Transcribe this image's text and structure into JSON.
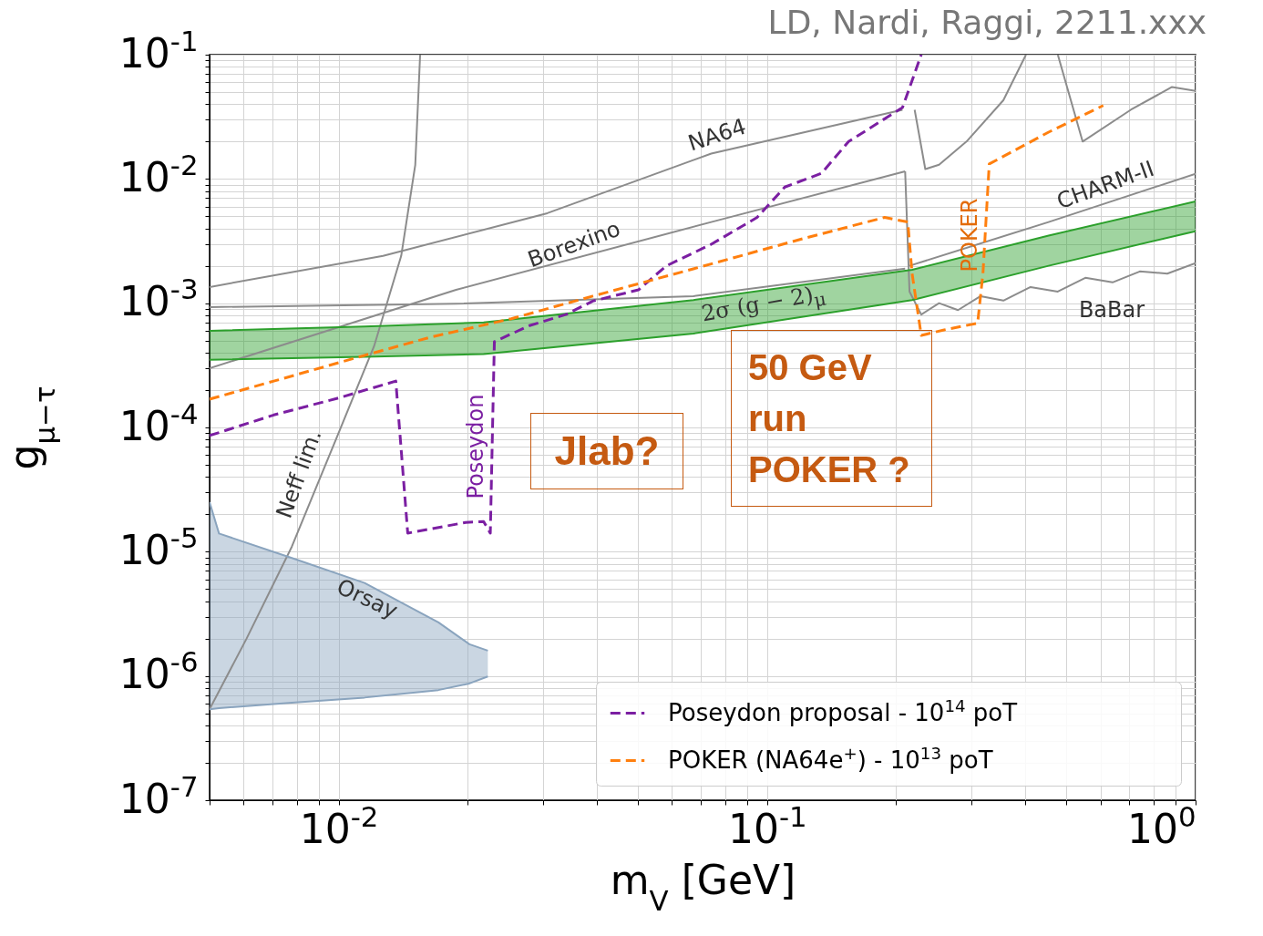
{
  "chart_data": {
    "type": "line",
    "xlabel": "m$_{V}$ [GeV]",
    "ylabel": "g$_{μ−τ}$",
    "log": "xy",
    "grid": true,
    "legend": "bottom right",
    "xlim": [
      0.005,
      1
    ],
    "ylim": [
      1e-07,
      0.1
    ],
    "xticks": [
      {
        "value": 0.005,
        "label": null
      },
      {
        "value": 0.006,
        "label": null
      },
      {
        "value": 0.007,
        "label": null
      },
      {
        "value": 0.008,
        "label": null
      },
      {
        "value": 0.009,
        "label": null
      },
      {
        "value": 0.01,
        "label": "10$^{-2}$"
      },
      {
        "value": 0.02,
        "label": null
      },
      {
        "value": 0.03,
        "label": null
      },
      {
        "value": 0.04,
        "label": null
      },
      {
        "value": 0.05,
        "label": null
      },
      {
        "value": 0.06,
        "label": null
      },
      {
        "value": 0.07,
        "label": null
      },
      {
        "value": 0.08,
        "label": null
      },
      {
        "value": 0.09,
        "label": null
      },
      {
        "value": 0.1,
        "label": "10$^{-1}$"
      },
      {
        "value": 0.2,
        "label": null
      },
      {
        "value": 0.3,
        "label": null
      },
      {
        "value": 0.4,
        "label": null
      },
      {
        "value": 0.5,
        "label": null
      },
      {
        "value": 0.6,
        "label": null
      },
      {
        "value": 0.7,
        "label": null
      },
      {
        "value": 0.8,
        "label": null
      },
      {
        "value": 0.9,
        "label": null
      },
      {
        "value": 1,
        "label": "10$^{0}$"
      }
    ],
    "yticks": [
      {
        "value": 1e-07,
        "label": "10$^{-7}$"
      },
      {
        "value": 2e-07,
        "label": null
      },
      {
        "value": 3e-07,
        "label": null
      },
      {
        "value": 4e-07,
        "label": null
      },
      {
        "value": 5e-07,
        "label": null
      },
      {
        "value": 6e-07,
        "label": null
      },
      {
        "value": 7e-07,
        "label": null
      },
      {
        "value": 8e-07,
        "label": null
      },
      {
        "value": 9e-07,
        "label": null
      },
      {
        "value": 1e-06,
        "label": "10$^{-6}$"
      },
      {
        "value": 2e-06,
        "label": null
      },
      {
        "value": 3e-06,
        "label": null
      },
      {
        "value": 4e-06,
        "label": null
      },
      {
        "value": 5e-06,
        "label": null
      },
      {
        "value": 6e-06,
        "label": null
      },
      {
        "value": 7e-06,
        "label": null
      },
      {
        "value": 8e-06,
        "label": null
      },
      {
        "value": 9e-06,
        "label": null
      },
      {
        "value": 1e-05,
        "label": "10$^{-5}$"
      },
      {
        "value": 2e-05,
        "label": null
      },
      {
        "value": 3e-05,
        "label": null
      },
      {
        "value": 4e-05,
        "label": null
      },
      {
        "value": 5e-05,
        "label": null
      },
      {
        "value": 6e-05,
        "label": null
      },
      {
        "value": 7e-05,
        "label": null
      },
      {
        "value": 8e-05,
        "label": null
      },
      {
        "value": 9e-05,
        "label": null
      },
      {
        "value": 0.0001,
        "label": "10$^{-4}$"
      },
      {
        "value": 0.0002,
        "label": null
      },
      {
        "value": 0.0003,
        "label": null
      },
      {
        "value": 0.0004,
        "label": null
      },
      {
        "value": 0.0005,
        "label": null
      },
      {
        "value": 0.0006,
        "label": null
      },
      {
        "value": 0.0007,
        "label": null
      },
      {
        "value": 0.0008,
        "label": null
      },
      {
        "value": 0.0009,
        "label": null
      },
      {
        "value": 0.001,
        "label": "10$^{-3}$"
      },
      {
        "value": 0.002,
        "label": null
      },
      {
        "value": 0.003,
        "label": null
      },
      {
        "value": 0.004,
        "label": null
      },
      {
        "value": 0.005,
        "label": null
      },
      {
        "value": 0.006,
        "label": null
      },
      {
        "value": 0.007,
        "label": null
      },
      {
        "value": 0.008,
        "label": null
      },
      {
        "value": 0.009,
        "label": null
      },
      {
        "value": 0.01,
        "label": "10$^{-2}$"
      },
      {
        "value": 0.02,
        "label": null
      },
      {
        "value": 0.03,
        "label": null
      },
      {
        "value": 0.04,
        "label": null
      },
      {
        "value": 0.05,
        "label": null
      },
      {
        "value": 0.06,
        "label": null
      },
      {
        "value": 0.07,
        "label": null
      },
      {
        "value": 0.08,
        "label": null
      },
      {
        "value": 0.09,
        "label": null
      },
      {
        "value": 0.1,
        "label": "10$^{-1}$"
      }
    ],
    "series": [
      {
        "color": "#8c8c8c",
        "line_style": "solid",
        "x": [
          0.005,
          0.0127,
          0.0307,
          0.0741,
          0.207
        ],
        "values": [
          0.00135,
          0.0024,
          0.0053,
          0.016,
          0.036
        ]
      },
      {
        "color": "#8c8c8c",
        "line_style": "solid",
        "x": [
          0.005,
          0.0188,
          0.0741,
          0.21
        ],
        "values": [
          0.0003,
          0.00128,
          0.0045,
          0.0115
        ]
      },
      {
        "color": "#8c8c8c",
        "line_style": "solid",
        "x": [
          0.005,
          0.0188,
          0.0673,
          0.21
        ],
        "values": [
          0.00093,
          0.00099,
          0.00114,
          0.0019
        ]
      },
      {
        "color": "#8c8c8c",
        "line_style": "solid",
        "x": [
          0.005,
          0.0061,
          0.00778,
          0.0099,
          0.0121,
          0.014,
          0.0151,
          0.0155
        ],
        "values": [
          5.4e-07,
          2e-06,
          1.1e-05,
          8.3e-05,
          0.00045,
          0.0024,
          0.013,
          0.1
        ]
      },
      {
        "color": "#8c8c8c",
        "line_style": "solid",
        "x": [
          0.21,
          0.215,
          0.229,
          0.252,
          0.279,
          0.315,
          0.356,
          0.412,
          0.477,
          0.553,
          0.64,
          0.741,
          0.859,
          1.0
        ],
        "values": [
          0.0115,
          0.00124,
          0.00081,
          0.001,
          0.00088,
          0.00114,
          0.00105,
          0.00135,
          0.00124,
          0.0016,
          0.00147,
          0.0018,
          0.00173,
          0.0021
        ]
      },
      {
        "color": "#8c8c8c",
        "line_style": "solid",
        "x": [
          0.215,
          0.454,
          1.0
        ],
        "values": [
          0.002,
          0.0045,
          0.011
        ]
      },
      {
        "color": "#8c8c8c",
        "line_style": "solid",
        "x": [
          0.221,
          0.234,
          0.252,
          0.292,
          0.356,
          0.402
        ],
        "values": [
          0.036,
          0.012,
          0.013,
          0.02,
          0.043,
          0.1
        ]
      },
      {
        "color": "#8c8c8c",
        "line_style": "solid",
        "x": [
          0.477,
          0.545,
          0.706,
          0.881,
          1.0
        ],
        "values": [
          0.1,
          0.02,
          0.036,
          0.055,
          0.051
        ]
      },
      {
        "color": "#2ca02c",
        "line_style": "solid",
        "x": [
          0.005,
          0.0115,
          0.0218,
          0.0673,
          0.218,
          0.454,
          1.0
        ],
        "values": [
          0.0006,
          0.00065,
          0.0007,
          0.00106,
          0.00186,
          0.0035,
          0.0066
        ]
      },
      {
        "color": "#2ca02c",
        "line_style": "solid",
        "x": [
          0.005,
          0.0115,
          0.0218,
          0.0673,
          0.218,
          0.454,
          1.0
        ],
        "values": [
          0.00035,
          0.00037,
          0.00039,
          0.00057,
          0.00106,
          0.002,
          0.0038
        ]
      },
      {
        "color": "#8aa4be",
        "line_style": "solid",
        "x": [
          0.005,
          0.00526,
          0.00778,
          0.0115,
          0.0171,
          0.0202,
          0.0223
        ],
        "values": [
          2.5e-05,
          1.4e-05,
          8.9e-06,
          5.6e-06,
          2.7e-06,
          1.8e-06,
          1.6e-06
        ]
      },
      {
        "color": "#8aa4be",
        "line_style": "solid",
        "x": [
          0.005,
          0.00526,
          0.00778,
          0.0115,
          0.0171,
          0.0202,
          0.0223
        ],
        "values": [
          5.4e-07,
          5.5e-07,
          6.1e-07,
          6.7e-07,
          7.7e-07,
          8.7e-07,
          9.9e-07
        ]
      },
      {
        "name": "Poseydon proposal - 10$^{14}$ poT",
        "color": "#7b1fa2",
        "line_style": "dashed",
        "x": [
          0.005,
          0.00706,
          0.0099,
          0.0136,
          0.0145,
          0.0198,
          0.0218,
          0.0226,
          0.0231,
          0.0279,
          0.0339,
          0.0392,
          0.0501,
          0.0581,
          0.0741,
          0.0948,
          0.11,
          0.134,
          0.155,
          0.207,
          0.229
        ],
        "values": [
          8.6e-05,
          0.000126,
          0.000171,
          0.000236,
          1.41e-05,
          1.72e-05,
          1.75e-05,
          1.41e-05,
          0.00049,
          0.00066,
          0.00081,
          0.00104,
          0.00128,
          0.00199,
          0.00298,
          0.0049,
          0.0086,
          0.0111,
          0.02,
          0.0375,
          0.1
        ]
      },
      {
        "name": "POKER (NA64e$^{+}$) - 10$^{13}$ poT",
        "color": "#ff7f0e",
        "line_style": "dashed",
        "x": [
          0.005,
          0.00706,
          0.0115,
          0.0163,
          0.0253,
          0.0392,
          0.0673,
          0.121,
          0.188,
          0.213,
          0.218,
          0.229,
          0.259,
          0.31,
          0.319,
          0.33,
          0.454,
          0.609
        ],
        "values": [
          0.000169,
          0.000236,
          0.00038,
          0.00053,
          0.00075,
          0.00114,
          0.00189,
          0.0033,
          0.0049,
          0.0045,
          0.00173,
          0.00055,
          0.00061,
          0.00069,
          0.00173,
          0.0132,
          0.0238,
          0.039
        ]
      }
    ],
    "annotations": [
      "NA64",
      "Borexino",
      "CHARM-II",
      "BaBar",
      "Neff lim.",
      "Orsay",
      "Poseydon",
      "POKER",
      "2σ (g − 2)$_{μ}$",
      "LD, Nardi, Raggi, 2211.xxx",
      "Jlab?",
      "50 GeV\nrun\nPOKER ?"
    ]
  }
}
